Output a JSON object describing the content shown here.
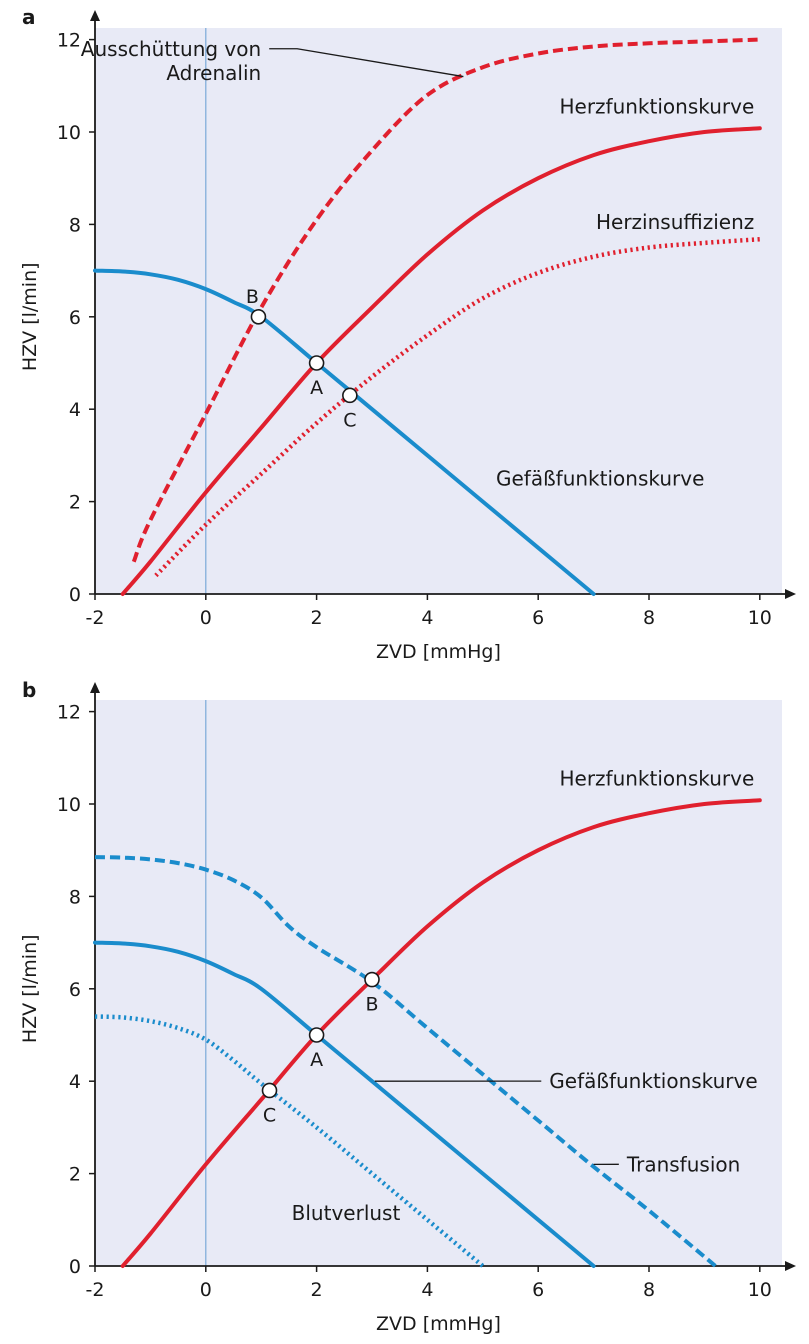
{
  "chart_data": [
    {
      "panel": "a",
      "type": "line",
      "xlabel": "ZVD [mmHg]",
      "ylabel": "HZV [l/min]",
      "xlim": [
        -2,
        10.5
      ],
      "ylim": [
        0,
        12.5
      ],
      "xticks": [
        -2,
        0,
        2,
        4,
        6,
        8,
        10
      ],
      "yticks": [
        0,
        2,
        4,
        6,
        8,
        10,
        12
      ],
      "xtick_labels": [
        "-2",
        "0",
        "2",
        "4",
        "6",
        "8",
        "10"
      ],
      "ytick_labels": [
        "0",
        "2",
        "4",
        "6",
        "8",
        "10",
        "12"
      ],
      "colors": {
        "background": "#e8eaf6",
        "red": "#e0202e",
        "blue": "#1a8ccc",
        "zero_line": "#7aa8d8"
      },
      "series": [
        {
          "key": "herz",
          "color": "red",
          "style": "solid",
          "x": [
            -1.5,
            -1,
            0,
            1,
            2,
            3,
            4,
            5,
            6,
            7,
            8,
            9,
            10
          ],
          "y": [
            0.0,
            0.7,
            2.2,
            3.6,
            5.0,
            6.2,
            7.35,
            8.3,
            9.0,
            9.5,
            9.8,
            10.0,
            10.08
          ]
        },
        {
          "key": "adrenalin",
          "color": "red",
          "style": "dashed",
          "x": [
            -1.3,
            -1,
            0,
            1,
            2,
            3,
            4,
            5,
            6,
            7,
            8,
            9,
            10
          ],
          "y": [
            0.7,
            1.6,
            3.9,
            6.2,
            8.1,
            9.6,
            10.8,
            11.4,
            11.7,
            11.85,
            11.92,
            11.96,
            12.0
          ]
        },
        {
          "key": "insuff",
          "color": "red",
          "style": "dotted",
          "x": [
            -0.9,
            0,
            1,
            2,
            3,
            4,
            5,
            6,
            7,
            8,
            9,
            10
          ],
          "y": [
            0.4,
            1.5,
            2.6,
            3.7,
            4.7,
            5.6,
            6.4,
            6.95,
            7.3,
            7.5,
            7.6,
            7.68
          ]
        },
        {
          "key": "gefaess",
          "color": "blue",
          "style": "solid",
          "x": [
            -2,
            -1.5,
            -1,
            -0.5,
            0,
            0.5,
            1,
            2,
            3,
            4,
            5,
            6,
            7
          ],
          "y": [
            7.0,
            6.98,
            6.92,
            6.8,
            6.6,
            6.32,
            6.0,
            5.0,
            4.0,
            3.0,
            2.0,
            1.0,
            0.0
          ]
        }
      ],
      "points": [
        {
          "label": "A",
          "x": 2.0,
          "y": 5.0,
          "label_pos": "below"
        },
        {
          "label": "B",
          "x": 0.95,
          "y": 6.0,
          "label_pos": "above-left"
        },
        {
          "label": "C",
          "x": 2.6,
          "y": 4.3,
          "label_pos": "below"
        }
      ],
      "annotations": [
        {
          "lines": [
            "Ausschüttung von",
            "Adrenalin"
          ],
          "x": 1.0,
          "y": 11.65,
          "anchor": "end",
          "leader": true,
          "leader_to": [
            4.65,
            11.2
          ]
        },
        {
          "lines": [
            "Herzfunktionskurve"
          ],
          "x": 9.9,
          "y": 10.4,
          "anchor": "end",
          "leader": false
        },
        {
          "lines": [
            "Herzinsuffizienz"
          ],
          "x": 9.9,
          "y": 7.9,
          "anchor": "end",
          "leader": false
        },
        {
          "lines": [
            "Gefäßfunktionskurve"
          ],
          "x": 9.0,
          "y": 2.35,
          "anchor": "end",
          "leader": false
        }
      ]
    },
    {
      "panel": "b",
      "type": "line",
      "xlabel": "ZVD [mmHg]",
      "ylabel": "HZV [l/min]",
      "xlim": [
        -2,
        10.5
      ],
      "ylim": [
        0,
        12.5
      ],
      "xticks": [
        -2,
        0,
        2,
        4,
        6,
        8,
        10
      ],
      "yticks": [
        0,
        2,
        4,
        6,
        8,
        10,
        12
      ],
      "xtick_labels": [
        "-2",
        "0",
        "2",
        "4",
        "6",
        "8",
        "10"
      ],
      "ytick_labels": [
        "0",
        "2",
        "4",
        "6",
        "8",
        "10",
        "12"
      ],
      "colors": {
        "background": "#e8eaf6",
        "red": "#e0202e",
        "blue": "#1a8ccc",
        "zero_line": "#7aa8d8"
      },
      "series": [
        {
          "key": "herz",
          "color": "red",
          "style": "solid",
          "x": [
            -1.5,
            -1,
            0,
            1,
            2,
            3,
            4,
            5,
            6,
            7,
            8,
            9,
            10
          ],
          "y": [
            0.0,
            0.7,
            2.2,
            3.6,
            5.0,
            6.2,
            7.35,
            8.3,
            9.0,
            9.5,
            9.8,
            10.0,
            10.08
          ]
        },
        {
          "key": "transfusion",
          "color": "blue",
          "style": "dashed",
          "x": [
            -2,
            -1.5,
            -1,
            -0.5,
            0,
            0.5,
            1,
            1.5,
            2,
            3,
            4,
            5,
            6,
            7,
            8,
            9.2
          ],
          "y": [
            8.85,
            8.84,
            8.8,
            8.72,
            8.58,
            8.35,
            7.98,
            7.35,
            6.9,
            6.15,
            5.15,
            4.15,
            3.15,
            2.15,
            1.2,
            0.0
          ]
        },
        {
          "key": "gefaess",
          "color": "blue",
          "style": "solid",
          "x": [
            -2,
            -1.5,
            -1,
            -0.5,
            0,
            0.5,
            1,
            2,
            3,
            4,
            5,
            6,
            7
          ],
          "y": [
            7.0,
            6.98,
            6.92,
            6.8,
            6.6,
            6.32,
            6.0,
            5.0,
            4.0,
            3.0,
            2.0,
            1.0,
            0.0
          ]
        },
        {
          "key": "blutverlust",
          "color": "blue",
          "style": "dotted",
          "x": [
            -2,
            -1.5,
            -1,
            -0.5,
            0,
            0.5,
            1,
            2,
            3,
            4,
            5
          ],
          "y": [
            5.4,
            5.38,
            5.3,
            5.15,
            4.9,
            4.45,
            3.95,
            3.0,
            2.0,
            1.0,
            0.0
          ]
        }
      ],
      "points": [
        {
          "label": "A",
          "x": 2.0,
          "y": 5.0,
          "label_pos": "below"
        },
        {
          "label": "B",
          "x": 3.0,
          "y": 6.2,
          "label_pos": "below"
        },
        {
          "label": "C",
          "x": 1.15,
          "y": 3.8,
          "label_pos": "below"
        }
      ],
      "annotations": [
        {
          "lines": [
            "Herzfunktionskurve"
          ],
          "x": 9.9,
          "y": 10.4,
          "anchor": "end",
          "leader": false
        },
        {
          "lines": [
            "Gefäßfunktionskurve"
          ],
          "x": 6.2,
          "y": 3.85,
          "anchor": "start",
          "leader": true,
          "leader_to": [
            3.05,
            4.0
          ]
        },
        {
          "lines": [
            "Transfusion"
          ],
          "x": 7.6,
          "y": 2.05,
          "anchor": "start",
          "leader": true,
          "leader_to": [
            7.0,
            2.2
          ]
        },
        {
          "lines": [
            "Blutverlust"
          ],
          "x": 1.55,
          "y": 1.0,
          "anchor": "start",
          "leader": false
        }
      ]
    }
  ]
}
